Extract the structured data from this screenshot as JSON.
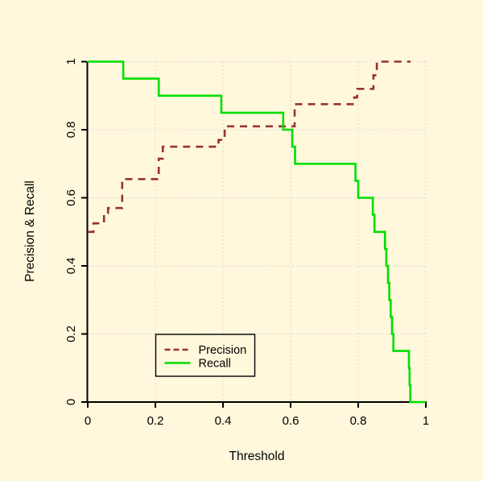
{
  "figure": {
    "background_color": "#FFF8DC",
    "axis_color": "#000000",
    "grid_color": "#D9D9D9",
    "text_color": "#000000"
  },
  "chart_data": {
    "type": "line",
    "subtype": "step-function",
    "title": "",
    "xlabel": "Threshold",
    "ylabel": "Precision & Recall",
    "xlim": [
      0,
      1
    ],
    "ylim": [
      0,
      1
    ],
    "x_tick_values": [
      0,
      0.2,
      0.4,
      0.6,
      0.8,
      1
    ],
    "x_tick_labels": [
      "0",
      "0.2",
      "0.4",
      "0.6",
      "0.8",
      "1"
    ],
    "y_tick_values": [
      0,
      0.2,
      0.4,
      0.6,
      0.8,
      1
    ],
    "y_tick_labels": [
      "0",
      "0.2",
      "0.4",
      "0.6",
      "0.8",
      "1"
    ],
    "grid": "dotted",
    "legend": {
      "position": "inside-lower-left",
      "entries": [
        {
          "label": "Precision",
          "color": "#983232",
          "style": "dashed"
        },
        {
          "label": "Recall",
          "color": "#00DE00",
          "style": "solid"
        }
      ]
    },
    "series": [
      {
        "name": "Precision",
        "color": "#983232",
        "style": "dashed",
        "step": "post",
        "x_end": 0.955,
        "points": [
          [
            0.0,
            0.5
          ],
          [
            0.017,
            0.525
          ],
          [
            0.048,
            0.555
          ],
          [
            0.06,
            0.57
          ],
          [
            0.102,
            0.655
          ],
          [
            0.21,
            0.715
          ],
          [
            0.222,
            0.75
          ],
          [
            0.387,
            0.77
          ],
          [
            0.405,
            0.81
          ],
          [
            0.612,
            0.875
          ],
          [
            0.788,
            0.895
          ],
          [
            0.797,
            0.92
          ],
          [
            0.845,
            0.96
          ],
          [
            0.855,
            1.0
          ]
        ]
      },
      {
        "name": "Recall",
        "color": "#00DE00",
        "style": "solid",
        "step": "post",
        "x_end": 1.0,
        "points": [
          [
            0.0,
            1.0
          ],
          [
            0.105,
            0.95
          ],
          [
            0.21,
            0.9
          ],
          [
            0.395,
            0.85
          ],
          [
            0.578,
            0.8
          ],
          [
            0.605,
            0.75
          ],
          [
            0.613,
            0.7
          ],
          [
            0.792,
            0.65
          ],
          [
            0.8,
            0.6
          ],
          [
            0.843,
            0.55
          ],
          [
            0.848,
            0.5
          ],
          [
            0.879,
            0.45
          ],
          [
            0.883,
            0.4
          ],
          [
            0.888,
            0.35
          ],
          [
            0.892,
            0.3
          ],
          [
            0.896,
            0.25
          ],
          [
            0.9,
            0.2
          ],
          [
            0.904,
            0.15
          ],
          [
            0.95,
            0.1
          ],
          [
            0.952,
            0.05
          ],
          [
            0.954,
            0.0
          ]
        ]
      }
    ]
  }
}
